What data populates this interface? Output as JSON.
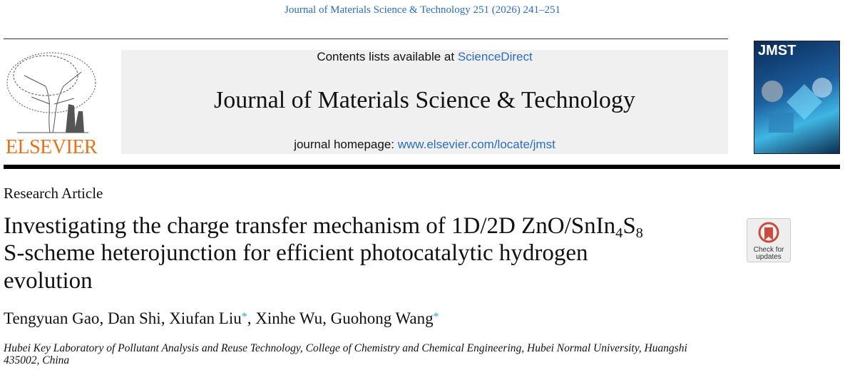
{
  "header": {
    "citation": "Journal of Materials Science & Technology 251 (2026) 241–251",
    "contents_prefix": "Contents lists available at ",
    "contents_link": "ScienceDirect",
    "journal_title": "Journal of Materials Science & Technology",
    "homepage_prefix": "journal homepage: ",
    "homepage_link": "www.elsevier.com/locate/jmst",
    "publisher": "ELSEVIER",
    "cover_title": "JMST"
  },
  "article": {
    "type": "Research Article",
    "title_lines": [
      [
        "Investigating the charge transfer mechanism of 1D/2D ZnO/SnIn",
        "4",
        "S",
        "8"
      ],
      [
        "S-scheme heterojunction for efficient photocatalytic hydrogen"
      ],
      [
        "evolution"
      ]
    ],
    "check_updates": [
      "Check for",
      "updates"
    ],
    "authors": [
      {
        "name": "Tengyuan Gao"
      },
      {
        "name": "Dan Shi"
      },
      {
        "name": "Xiufan Liu",
        "mark": "*"
      },
      {
        "name": "Xinhe Wu"
      },
      {
        "name": "Guohong Wang",
        "mark": "*"
      }
    ],
    "author_separator": ", ",
    "affiliation": "Hubei Key Laboratory of Pollutant Analysis and Reuse Technology, College of Chemistry and Chemical Engineering, Hubei Normal University, Huangshi 435002, China"
  }
}
